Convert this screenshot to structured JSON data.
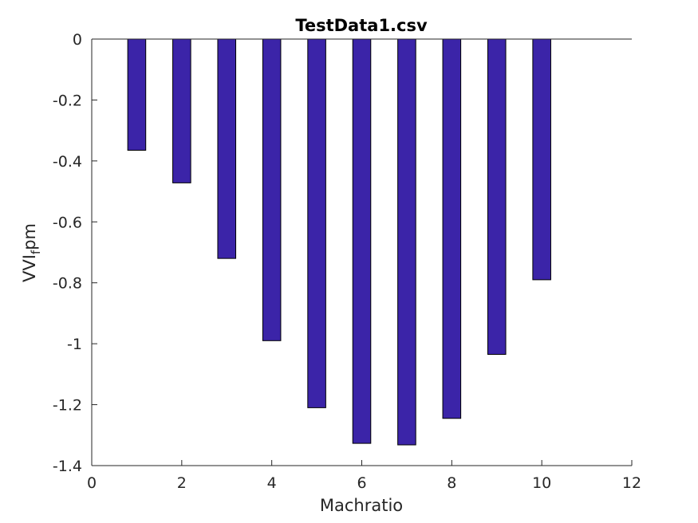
{
  "chart_data": {
    "type": "bar",
    "title": "TestData1.csv",
    "xlabel": "Machratio",
    "ylabel_main": "VVI",
    "ylabel_sub": "f",
    "ylabel_tail": "pm",
    "x": [
      1,
      2,
      3,
      4,
      5,
      6,
      7,
      8,
      9,
      10
    ],
    "values": [
      -0.365,
      -0.472,
      -0.72,
      -0.99,
      -1.21,
      -1.327,
      -1.332,
      -1.245,
      -1.035,
      -0.79
    ],
    "xlim": [
      0,
      12
    ],
    "ylim": [
      -1.4,
      0
    ],
    "xticks": [
      0,
      2,
      4,
      6,
      8,
      10,
      12
    ],
    "xtick_labels": [
      "0",
      "2",
      "4",
      "6",
      "8",
      "10",
      "12"
    ],
    "yticks": [
      0,
      -0.2,
      -0.4,
      -0.6,
      -0.8,
      -1,
      -1.2,
      -1.4
    ],
    "ytick_labels": [
      "0",
      "-0.2",
      "-0.4",
      "-0.6",
      "-0.8",
      "-1",
      "-1.2",
      "-1.4"
    ],
    "bar_color": "#3b24a8",
    "grid": false
  }
}
